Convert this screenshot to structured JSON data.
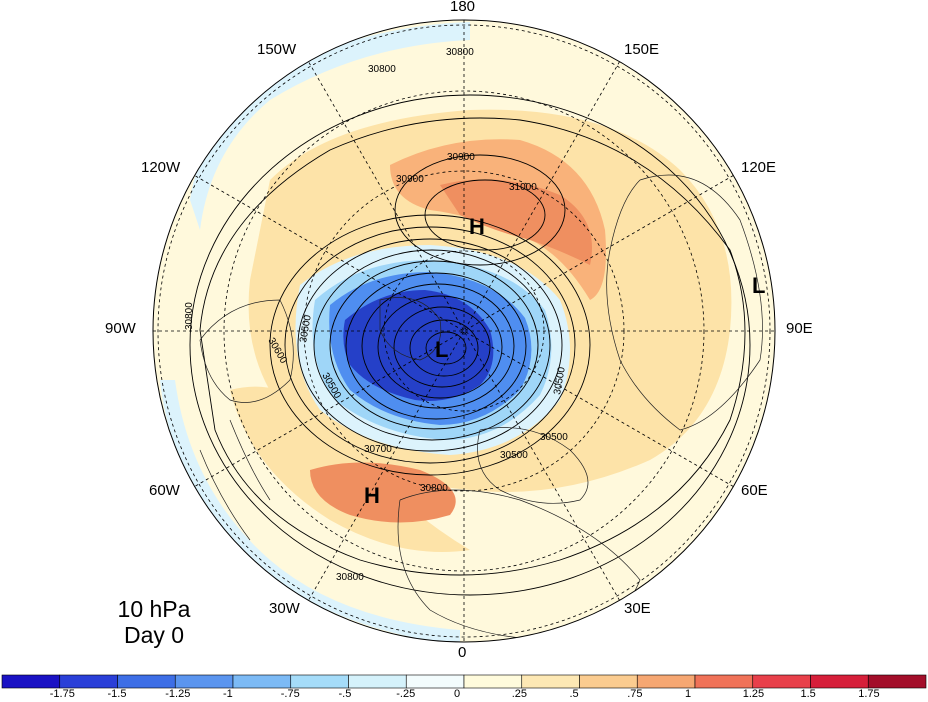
{
  "map": {
    "projection": "north polar stereographic",
    "level_label": "10 hPa",
    "time_label": "Day 0",
    "longitude_labels": [
      "180",
      "150E",
      "120E",
      "90E",
      "60E",
      "30E",
      "0",
      "30W",
      "60W",
      "90W",
      "120W",
      "150W"
    ],
    "contour_labels": [
      "30800",
      "30800",
      "30800",
      "30800",
      "30900",
      "30900",
      "31000",
      "30500",
      "30500",
      "30500",
      "30500",
      "30600",
      "30700",
      "30800",
      "30500"
    ],
    "pressure_centers": [
      "H",
      "H",
      "L",
      "L"
    ],
    "colors": {
      "deep_blue": "#2540c8",
      "mid_blue": "#4f8ef0",
      "light_blue": "#9fd6f8",
      "pale_blue": "#dcf3fc",
      "cream": "#fff9dc",
      "light_orange": "#fde3a8",
      "orange": "#f9b27a",
      "dark_orange": "#ef8f60"
    }
  },
  "colorbar": {
    "tick_labels": [
      "-1.75",
      "-1.5",
      "-1.25",
      "-1",
      "-.75",
      "-.5",
      "-.25",
      "0",
      ".25",
      ".5",
      ".75",
      "1",
      "1.25",
      "1.5",
      "1.75"
    ],
    "colors": [
      "#1a12c4",
      "#2a3fd8",
      "#3d6ee6",
      "#5b95ef",
      "#7cbaf5",
      "#a5dcf9",
      "#d5f2fb",
      "#f3fcfd",
      "#fffbdc",
      "#fde8b4",
      "#fbcc90",
      "#f6a772",
      "#f07258",
      "#e8404a",
      "#d61f3a",
      "#a30e2a"
    ]
  }
}
